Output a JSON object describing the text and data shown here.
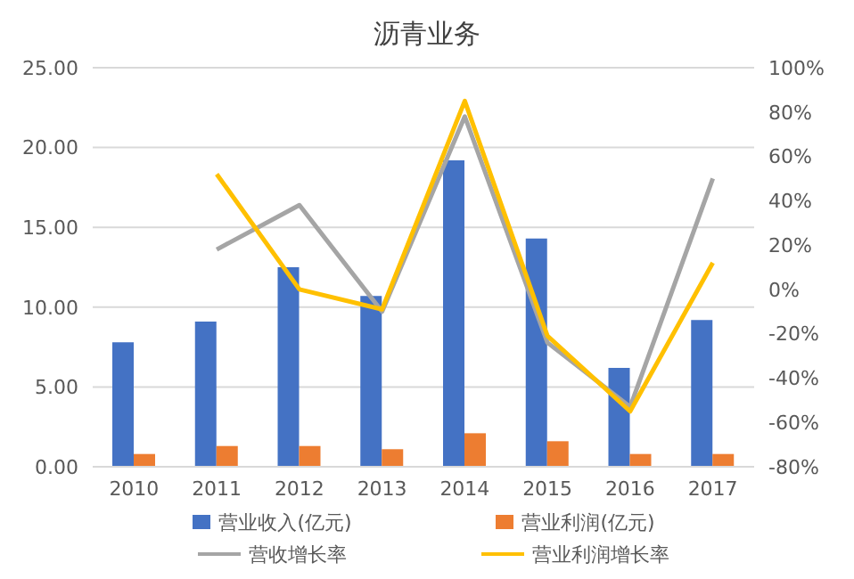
{
  "chart_data": {
    "type": "bar",
    "title": "沥青业务",
    "categories": [
      "2010",
      "2011",
      "2012",
      "2013",
      "2014",
      "2015",
      "2016",
      "2017"
    ],
    "series": [
      {
        "name": "营业收入(亿元)",
        "color": "#4472c4",
        "values": [
          7.8,
          9.1,
          12.5,
          10.7,
          19.2,
          14.3,
          6.2,
          9.2
        ]
      },
      {
        "name": "营业利润(亿元)",
        "color": "#ed7d31",
        "values": [
          0.8,
          1.3,
          1.3,
          1.1,
          2.1,
          1.6,
          0.8,
          0.8
        ]
      },
      {
        "name": "营收增长率",
        "type": "line",
        "axis": "y2",
        "color": "#a5a5a5",
        "values": [
          null,
          18,
          38,
          -10,
          78,
          -24,
          -53,
          50
        ]
      },
      {
        "name": "营业利润增长率",
        "type": "line",
        "axis": "y2",
        "color": "#ffc000",
        "values": [
          null,
          52,
          0,
          -9,
          85,
          -21,
          -55,
          12
        ]
      }
    ],
    "ylim": [
      0,
      25
    ],
    "yticks": [
      {
        "value": 0,
        "label": "0.00"
      },
      {
        "value": 5,
        "label": "5.00"
      },
      {
        "value": 10,
        "label": "10.00"
      },
      {
        "value": 15,
        "label": "15.00"
      },
      {
        "value": 20,
        "label": "20.00"
      },
      {
        "value": 25,
        "label": "25.00"
      }
    ],
    "y2lim": [
      -80,
      100
    ],
    "y2ticks": [
      {
        "value": -80,
        "label": "-80%"
      },
      {
        "value": -60,
        "label": "-60%"
      },
      {
        "value": -40,
        "label": "-40%"
      },
      {
        "value": -20,
        "label": "-20%"
      },
      {
        "value": 0,
        "label": "0%"
      },
      {
        "value": 20,
        "label": "20%"
      },
      {
        "value": 40,
        "label": "40%"
      },
      {
        "value": 60,
        "label": "60%"
      },
      {
        "value": 80,
        "label": "80%"
      },
      {
        "value": 100,
        "label": "100%"
      }
    ],
    "grid": "y",
    "legend": "bottom",
    "marker": "none"
  }
}
